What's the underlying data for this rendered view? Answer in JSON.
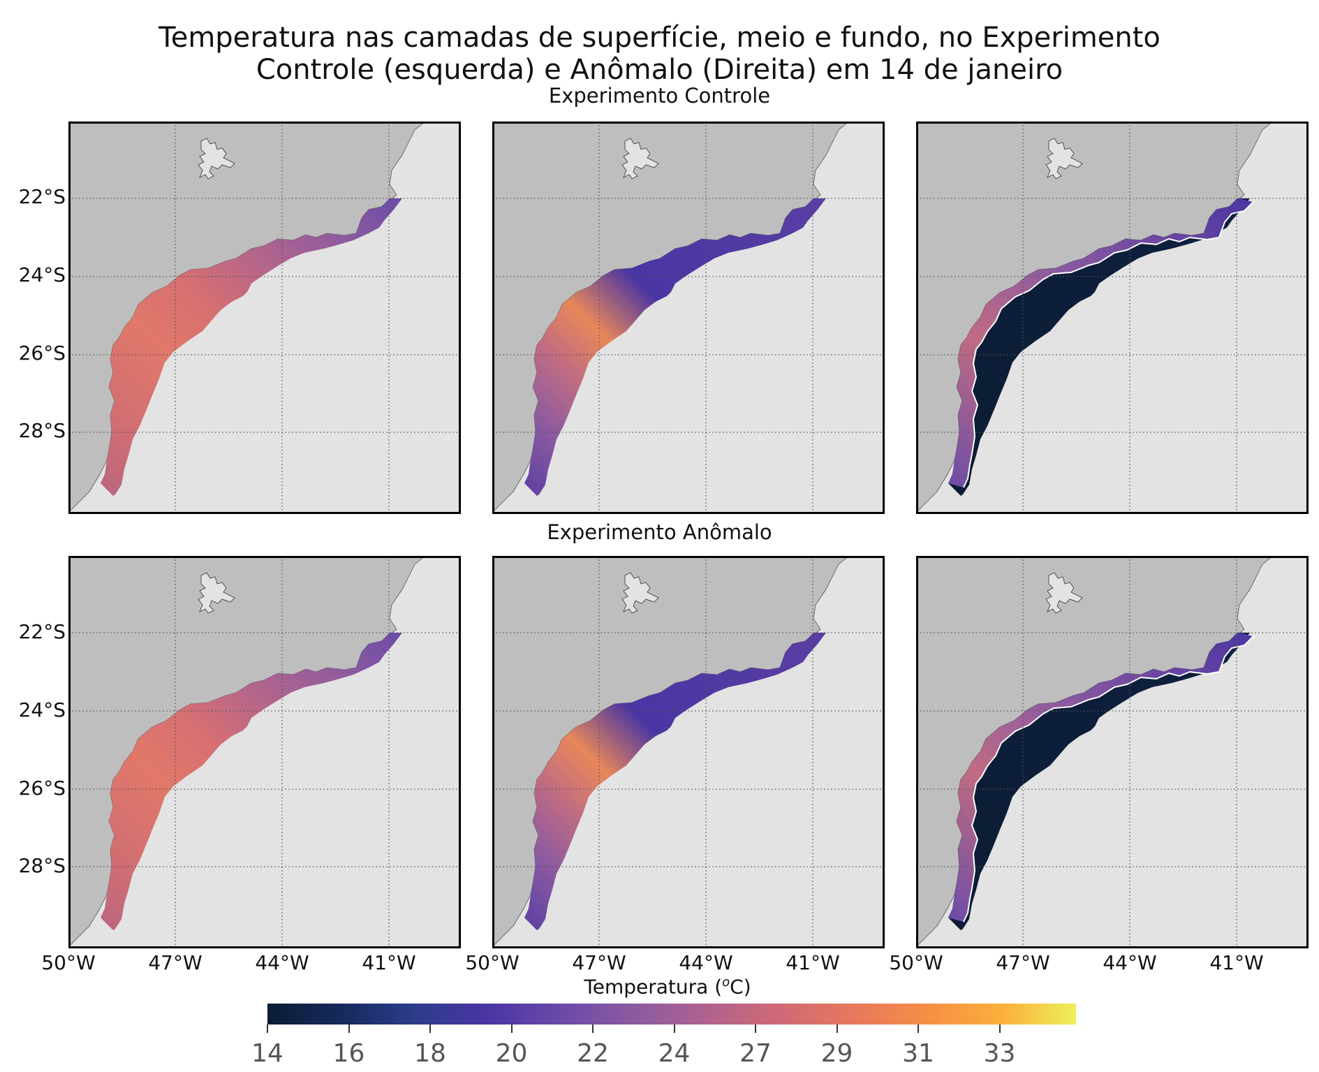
{
  "figure": {
    "title_line1": "Temperatura nas camadas de superfície, meio e fundo, no Experimento",
    "title_line2": "Controle (esquerda) e Anômalo (Direita) em 14 de janeiro",
    "row1_title": "Experimento Controle",
    "row2_title": "Experimento Anômalo"
  },
  "axes": {
    "lat_labels": [
      "22°S",
      "24°S",
      "26°S",
      "28°S"
    ],
    "lon_labels": [
      "50°W",
      "47°W",
      "44°W",
      "41°W"
    ],
    "lon_range": [
      -50,
      -39
    ],
    "lat_range": [
      -30,
      -20
    ],
    "grid": true
  },
  "colorbar": {
    "label": "Temperatura (°C)",
    "label_main": "Temperatura (",
    "label_sup": "o",
    "label_end": "C)",
    "ticks": [
      "14",
      "16",
      "18",
      "20",
      "22",
      "24",
      "27",
      "29",
      "31",
      "33"
    ],
    "colors": [
      "#0c1c33",
      "#152a5c",
      "#2c3d8a",
      "#4a35a3",
      "#6b4aa8",
      "#8c5aa0",
      "#b1628e",
      "#d06a74",
      "#e8785d",
      "#f58f44",
      "#fbb03c",
      "#eef05a"
    ]
  },
  "panels": [
    {
      "experiment": "Controle",
      "layer": "superfície",
      "fill": "surface"
    },
    {
      "experiment": "Controle",
      "layer": "meio",
      "fill": "middle"
    },
    {
      "experiment": "Controle",
      "layer": "fundo",
      "fill": "bottom"
    },
    {
      "experiment": "Anômalo",
      "layer": "superfície",
      "fill": "surface"
    },
    {
      "experiment": "Anômalo",
      "layer": "meio",
      "fill": "middle"
    },
    {
      "experiment": "Anômalo",
      "layer": "fundo",
      "fill": "bottom"
    }
  ]
}
